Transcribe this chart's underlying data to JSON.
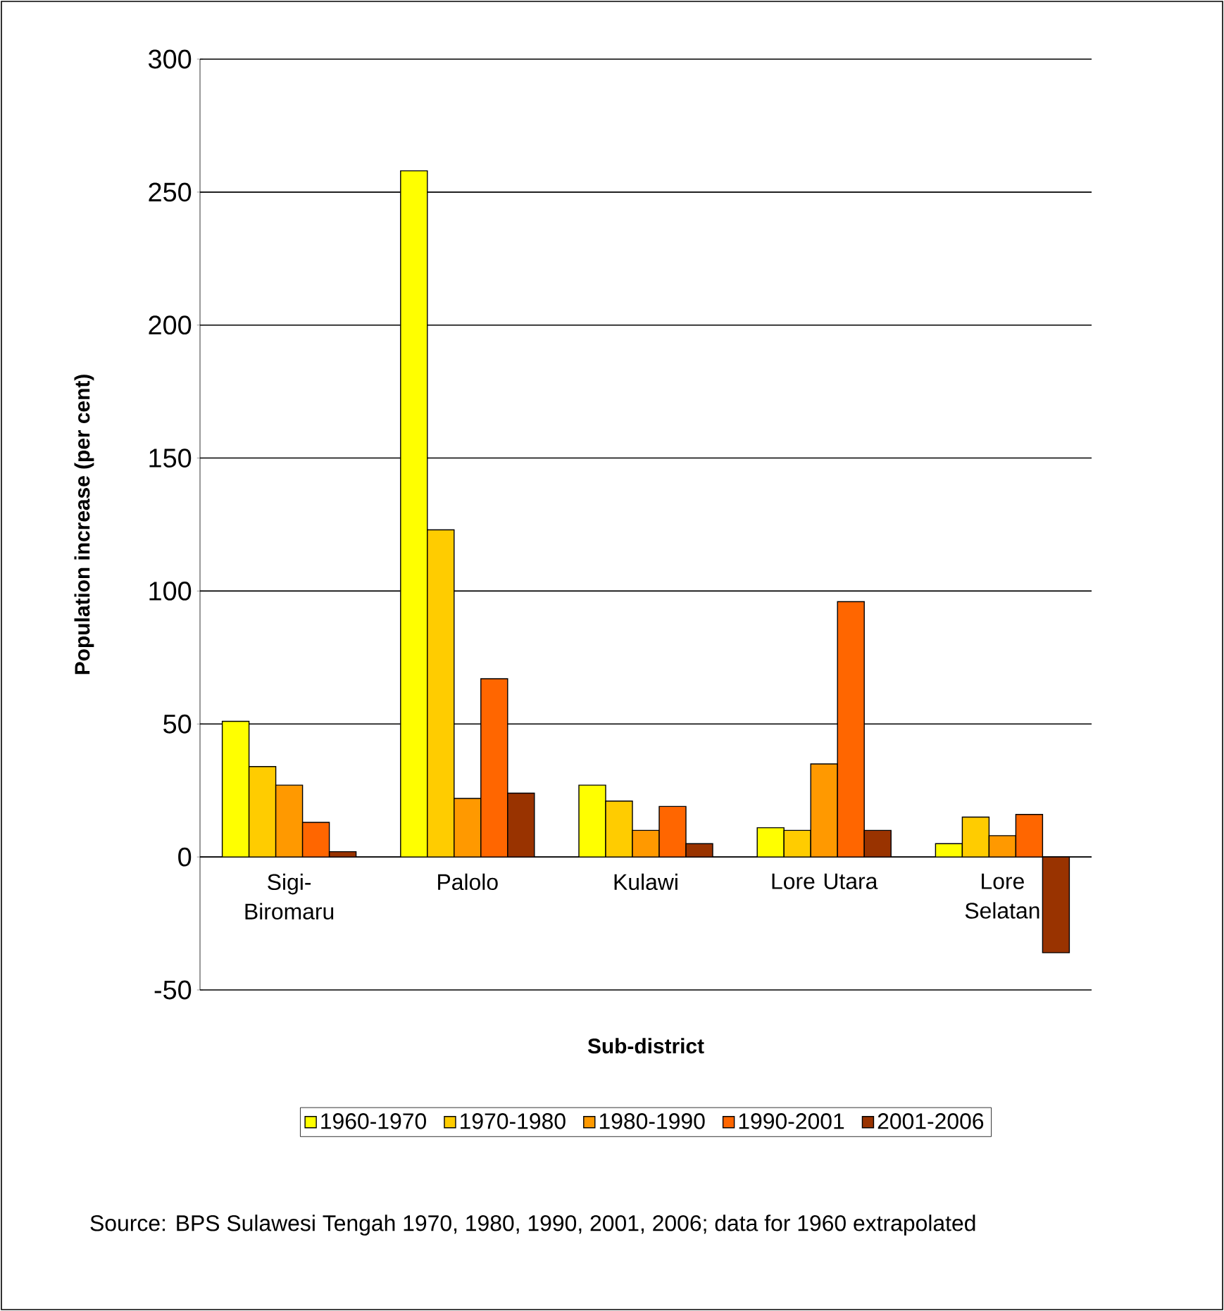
{
  "chart_data": {
    "type": "bar",
    "xlabel": "Sub-district",
    "ylabel": "Population increase (per cent)",
    "categories": [
      "Sigi-Biromaru",
      "Palolo",
      "Kulawi",
      "Lore Utara",
      "Lore Selatan"
    ],
    "series": [
      {
        "name": "1960-1970",
        "color": "#ffff00",
        "values": [
          51,
          258,
          27,
          11,
          5
        ]
      },
      {
        "name": "1970-1980",
        "color": "#ffcc00",
        "values": [
          34,
          123,
          21,
          10,
          15
        ]
      },
      {
        "name": "1980-1990",
        "color": "#ff9900",
        "values": [
          27,
          22,
          10,
          35,
          8
        ]
      },
      {
        "name": "1990-2001",
        "color": "#ff6600",
        "values": [
          13,
          67,
          19,
          96,
          16
        ]
      },
      {
        "name": "2001-2006",
        "color": "#993300",
        "values": [
          2,
          24,
          5,
          10,
          -36
        ]
      }
    ],
    "ylim": [
      -50,
      300
    ],
    "yticks": [
      -50,
      0,
      50,
      100,
      150,
      200,
      250,
      300
    ],
    "grid": "y",
    "legend": "bottom",
    "annotations": [
      "Source:  BPS Sulawesi Tengah 1970, 1980, 1990, 2001, 2006; data for 1960 extrapolated"
    ]
  }
}
